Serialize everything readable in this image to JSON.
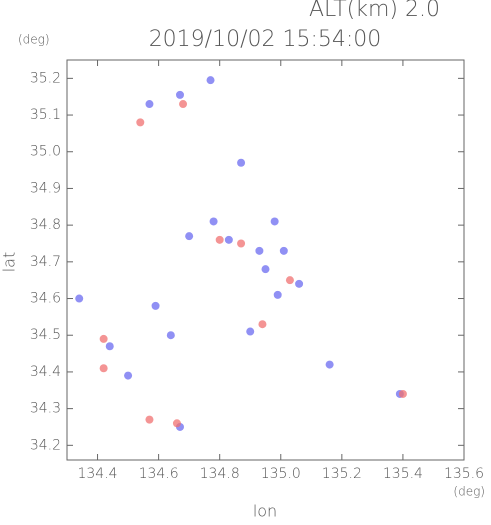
{
  "chart_data": {
    "type": "scatter",
    "title": "2019/10/02 15:54:00",
    "subtitle": "ALT(km) 2.0",
    "y_unit": "(deg)",
    "x_unit": "(deg)",
    "xlabel": "lon",
    "ylabel": "lat",
    "xlim": [
      134.3,
      135.6
    ],
    "ylim": [
      34.16,
      35.25
    ],
    "xticks": [
      134.4,
      134.6,
      134.8,
      {
        "value": 135.0,
        "label": "135.0"
      },
      135.2,
      135.4,
      135.6
    ],
    "yticks": [
      34.2,
      34.3,
      34.4,
      34.5,
      34.6,
      34.7,
      34.8,
      34.9,
      {
        "value": 35.0,
        "label": "35.0"
      },
      35.1,
      35.2
    ],
    "series": [
      {
        "color": "#6b6bf0",
        "x": [
          134.67,
          134.77,
          134.57,
          134.87,
          134.78,
          134.83,
          134.93,
          135.01,
          134.95,
          134.99,
          135.06,
          134.9,
          134.64,
          134.59,
          134.44,
          134.5,
          134.34,
          134.7,
          135.16,
          135.39,
          134.98,
          134.67
        ],
        "values": [
          35.155,
          35.195,
          35.13,
          34.97,
          34.81,
          34.76,
          34.73,
          34.73,
          34.68,
          34.61,
          34.64,
          34.51,
          34.5,
          34.58,
          34.47,
          34.39,
          34.6,
          34.77,
          34.42,
          34.34,
          34.81,
          34.25
        ]
      },
      {
        "color": "#f07070",
        "x": [
          134.54,
          134.68,
          134.8,
          135.03,
          134.94,
          134.42,
          134.57,
          134.66,
          135.4,
          134.87,
          134.42
        ],
        "values": [
          35.08,
          35.13,
          34.76,
          34.65,
          34.53,
          34.41,
          34.27,
          34.26,
          34.34,
          34.75,
          34.49
        ]
      }
    ]
  }
}
